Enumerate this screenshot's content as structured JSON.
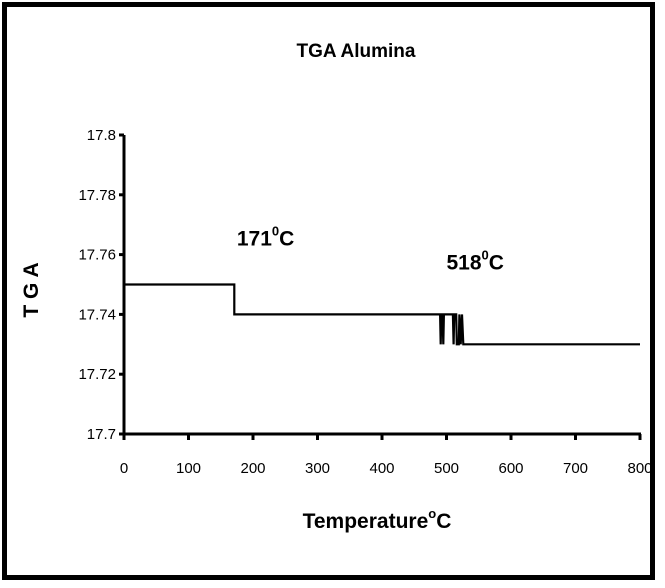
{
  "chart_data": {
    "type": "line",
    "title": "TGA Alumina",
    "xlabel": "Temperature",
    "xlabel_sup": "o",
    "xlabel_unit": "C",
    "ylabel": "T G A",
    "xlim": [
      0,
      800
    ],
    "ylim": [
      17.7,
      17.8
    ],
    "x_ticks": [
      "0",
      "100",
      "200",
      "300",
      "400",
      "500",
      "600",
      "700",
      "800"
    ],
    "y_ticks": [
      "17.7",
      "17.72",
      "17.74",
      "17.76",
      "17.78",
      "17.8"
    ],
    "grid": false,
    "legend": "none",
    "series": [
      {
        "color": "#000000",
        "points": [
          [
            0,
            17.75
          ],
          [
            171,
            17.75
          ],
          [
            171,
            17.74
          ],
          [
            490,
            17.74
          ],
          [
            491,
            17.73
          ],
          [
            492,
            17.74
          ],
          [
            494,
            17.74
          ],
          [
            495,
            17.73
          ],
          [
            496,
            17.74
          ],
          [
            510,
            17.74
          ],
          [
            511,
            17.73
          ],
          [
            512,
            17.74
          ],
          [
            515,
            17.74
          ],
          [
            516,
            17.73
          ],
          [
            519,
            17.73
          ],
          [
            520,
            17.74
          ],
          [
            522,
            17.73
          ],
          [
            524,
            17.74
          ],
          [
            526,
            17.73
          ],
          [
            800,
            17.73
          ]
        ]
      }
    ],
    "annotations": [
      {
        "text": "171",
        "sup": "0",
        "unit": "C",
        "x": 175,
        "y": 17.763
      },
      {
        "text": "518",
        "sup": "0",
        "unit": "C",
        "x": 500,
        "y": 17.755
      }
    ]
  }
}
